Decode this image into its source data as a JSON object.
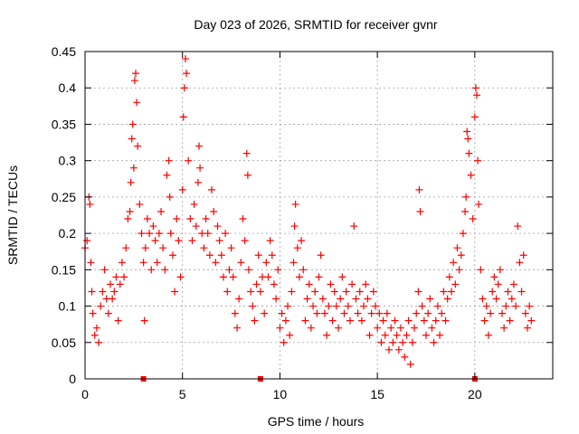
{
  "chart_data": {
    "type": "scatter",
    "title": "Day 023 of 2026, SRMTID for receiver gvnr",
    "xlabel": "GPS time / hours",
    "ylabel": "SRMTID / TECUs",
    "xlim": [
      0,
      24
    ],
    "ylim": [
      0,
      0.45
    ],
    "xticks": [
      0,
      5,
      10,
      15,
      20
    ],
    "xtick_labels": [
      "0",
      "5",
      "10",
      "15",
      "20"
    ],
    "yticks": [
      0,
      0.05,
      0.1,
      0.15,
      0.2,
      0.25,
      0.3,
      0.35,
      0.4,
      0.45
    ],
    "ytick_labels": [
      "0",
      "0.05",
      "0.1",
      "0.15",
      "0.2",
      "0.25",
      "0.3",
      "0.35",
      "0.4",
      "0.45"
    ],
    "grid": true,
    "marker": "+",
    "series": [
      {
        "name": "SRMTID",
        "color": "#ff0000",
        "points": [
          [
            0.0,
            0.18
          ],
          [
            0.1,
            0.19
          ],
          [
            0.2,
            0.25
          ],
          [
            0.25,
            0.24
          ],
          [
            0.3,
            0.16
          ],
          [
            0.35,
            0.12
          ],
          [
            0.4,
            0.09
          ],
          [
            0.5,
            0.06
          ],
          [
            0.6,
            0.07
          ],
          [
            0.7,
            0.05
          ],
          [
            0.8,
            0.1
          ],
          [
            0.9,
            0.12
          ],
          [
            1.0,
            0.15
          ],
          [
            1.1,
            0.11
          ],
          [
            1.2,
            0.09
          ],
          [
            1.3,
            0.13
          ],
          [
            1.4,
            0.11
          ],
          [
            1.5,
            0.12
          ],
          [
            1.6,
            0.14
          ],
          [
            1.7,
            0.08
          ],
          [
            1.8,
            0.13
          ],
          [
            1.9,
            0.16
          ],
          [
            2.0,
            0.14
          ],
          [
            2.1,
            0.18
          ],
          [
            2.2,
            0.22
          ],
          [
            2.3,
            0.23
          ],
          [
            2.35,
            0.27
          ],
          [
            2.4,
            0.33
          ],
          [
            2.45,
            0.35
          ],
          [
            2.5,
            0.29
          ],
          [
            2.55,
            0.41
          ],
          [
            2.6,
            0.42
          ],
          [
            2.65,
            0.38
          ],
          [
            2.7,
            0.32
          ],
          [
            2.8,
            0.24
          ],
          [
            2.9,
            0.2
          ],
          [
            3.0,
            0.16
          ],
          [
            3.05,
            0.08
          ],
          [
            3.1,
            0.18
          ],
          [
            3.2,
            0.22
          ],
          [
            3.3,
            0.2
          ],
          [
            3.4,
            0.15
          ],
          [
            3.5,
            0.21
          ],
          [
            3.6,
            0.19
          ],
          [
            3.7,
            0.16
          ],
          [
            3.8,
            0.2
          ],
          [
            3.9,
            0.23
          ],
          [
            4.0,
            0.18
          ],
          [
            4.1,
            0.15
          ],
          [
            4.2,
            0.28
          ],
          [
            4.3,
            0.3
          ],
          [
            4.35,
            0.25
          ],
          [
            4.4,
            0.2
          ],
          [
            4.5,
            0.17
          ],
          [
            4.6,
            0.12
          ],
          [
            4.7,
            0.22
          ],
          [
            4.8,
            0.19
          ],
          [
            4.9,
            0.14
          ],
          [
            5.0,
            0.26
          ],
          [
            5.05,
            0.36
          ],
          [
            5.1,
            0.4
          ],
          [
            5.15,
            0.44
          ],
          [
            5.2,
            0.42
          ],
          [
            5.3,
            0.3
          ],
          [
            5.4,
            0.22
          ],
          [
            5.5,
            0.19
          ],
          [
            5.6,
            0.24
          ],
          [
            5.7,
            0.21
          ],
          [
            5.8,
            0.27
          ],
          [
            5.85,
            0.32
          ],
          [
            5.9,
            0.29
          ],
          [
            6.0,
            0.2
          ],
          [
            6.1,
            0.18
          ],
          [
            6.2,
            0.22
          ],
          [
            6.3,
            0.2
          ],
          [
            6.4,
            0.17
          ],
          [
            6.5,
            0.26
          ],
          [
            6.6,
            0.23
          ],
          [
            6.7,
            0.16
          ],
          [
            6.8,
            0.21
          ],
          [
            6.9,
            0.19
          ],
          [
            7.0,
            0.17
          ],
          [
            7.1,
            0.14
          ],
          [
            7.2,
            0.2
          ],
          [
            7.3,
            0.12
          ],
          [
            7.4,
            0.15
          ],
          [
            7.5,
            0.18
          ],
          [
            7.6,
            0.14
          ],
          [
            7.7,
            0.09
          ],
          [
            7.8,
            0.07
          ],
          [
            7.9,
            0.11
          ],
          [
            8.0,
            0.16
          ],
          [
            8.1,
            0.22
          ],
          [
            8.2,
            0.19
          ],
          [
            8.3,
            0.31
          ],
          [
            8.35,
            0.28
          ],
          [
            8.4,
            0.15
          ],
          [
            8.5,
            0.12
          ],
          [
            8.6,
            0.1
          ],
          [
            8.7,
            0.08
          ],
          [
            8.8,
            0.13
          ],
          [
            8.9,
            0.17
          ],
          [
            9.0,
            0.12
          ],
          [
            9.1,
            0.14
          ],
          [
            9.2,
            0.09
          ],
          [
            9.3,
            0.16
          ],
          [
            9.4,
            0.14
          ],
          [
            9.5,
            0.19
          ],
          [
            9.6,
            0.17
          ],
          [
            9.7,
            0.13
          ],
          [
            9.8,
            0.11
          ],
          [
            9.9,
            0.15
          ],
          [
            10.0,
            0.07
          ],
          [
            10.1,
            0.09
          ],
          [
            10.2,
            0.05
          ],
          [
            10.3,
            0.08
          ],
          [
            10.4,
            0.1
          ],
          [
            10.5,
            0.06
          ],
          [
            10.6,
            0.12
          ],
          [
            10.7,
            0.16
          ],
          [
            10.75,
            0.21
          ],
          [
            10.8,
            0.24
          ],
          [
            10.9,
            0.18
          ],
          [
            11.0,
            0.14
          ],
          [
            11.1,
            0.19
          ],
          [
            11.2,
            0.15
          ],
          [
            11.3,
            0.08
          ],
          [
            11.4,
            0.11
          ],
          [
            11.5,
            0.13
          ],
          [
            11.6,
            0.07
          ],
          [
            11.7,
            0.1
          ],
          [
            11.8,
            0.12
          ],
          [
            11.9,
            0.09
          ],
          [
            12.0,
            0.14
          ],
          [
            12.1,
            0.17
          ],
          [
            12.2,
            0.11
          ],
          [
            12.3,
            0.09
          ],
          [
            12.4,
            0.06
          ],
          [
            12.5,
            0.1
          ],
          [
            12.6,
            0.13
          ],
          [
            12.7,
            0.08
          ],
          [
            12.8,
            0.12
          ],
          [
            12.9,
            0.1
          ],
          [
            13.0,
            0.07
          ],
          [
            13.1,
            0.11
          ],
          [
            13.2,
            0.14
          ],
          [
            13.3,
            0.09
          ],
          [
            13.4,
            0.12
          ],
          [
            13.5,
            0.1
          ],
          [
            13.6,
            0.08
          ],
          [
            13.7,
            0.13
          ],
          [
            13.8,
            0.21
          ],
          [
            13.9,
            0.11
          ],
          [
            14.0,
            0.09
          ],
          [
            14.1,
            0.12
          ],
          [
            14.2,
            0.08
          ],
          [
            14.3,
            0.1
          ],
          [
            14.4,
            0.13
          ],
          [
            14.5,
            0.11
          ],
          [
            14.6,
            0.06
          ],
          [
            14.7,
            0.09
          ],
          [
            14.8,
            0.12
          ],
          [
            14.9,
            0.1
          ],
          [
            15.0,
            0.07
          ],
          [
            15.1,
            0.09
          ],
          [
            15.2,
            0.05
          ],
          [
            15.3,
            0.08
          ],
          [
            15.4,
            0.06
          ],
          [
            15.5,
            0.09
          ],
          [
            15.6,
            0.04
          ],
          [
            15.7,
            0.07
          ],
          [
            15.8,
            0.05
          ],
          [
            15.9,
            0.08
          ],
          [
            16.0,
            0.06
          ],
          [
            16.1,
            0.04
          ],
          [
            16.2,
            0.07
          ],
          [
            16.3,
            0.05
          ],
          [
            16.4,
            0.03
          ],
          [
            16.5,
            0.06
          ],
          [
            16.6,
            0.08
          ],
          [
            16.7,
            0.02
          ],
          [
            16.8,
            0.05
          ],
          [
            16.9,
            0.07
          ],
          [
            17.0,
            0.09
          ],
          [
            17.1,
            0.12
          ],
          [
            17.15,
            0.26
          ],
          [
            17.2,
            0.23
          ],
          [
            17.3,
            0.1
          ],
          [
            17.4,
            0.08
          ],
          [
            17.5,
            0.06
          ],
          [
            17.6,
            0.09
          ],
          [
            17.7,
            0.11
          ],
          [
            17.8,
            0.07
          ],
          [
            17.9,
            0.05
          ],
          [
            18.0,
            0.08
          ],
          [
            18.1,
            0.1
          ],
          [
            18.2,
            0.06
          ],
          [
            18.3,
            0.09
          ],
          [
            18.4,
            0.12
          ],
          [
            18.5,
            0.08
          ],
          [
            18.6,
            0.11
          ],
          [
            18.7,
            0.14
          ],
          [
            18.8,
            0.12
          ],
          [
            18.9,
            0.16
          ],
          [
            19.0,
            0.13
          ],
          [
            19.1,
            0.18
          ],
          [
            19.2,
            0.15
          ],
          [
            19.3,
            0.17
          ],
          [
            19.4,
            0.2
          ],
          [
            19.5,
            0.23
          ],
          [
            19.55,
            0.25
          ],
          [
            19.6,
            0.34
          ],
          [
            19.65,
            0.33
          ],
          [
            19.7,
            0.31
          ],
          [
            19.8,
            0.28
          ],
          [
            19.9,
            0.22
          ],
          [
            20.0,
            0.36
          ],
          [
            20.05,
            0.4
          ],
          [
            20.1,
            0.39
          ],
          [
            20.15,
            0.3
          ],
          [
            20.2,
            0.24
          ],
          [
            20.3,
            0.15
          ],
          [
            20.4,
            0.11
          ],
          [
            20.5,
            0.08
          ],
          [
            20.6,
            0.1
          ],
          [
            20.7,
            0.06
          ],
          [
            20.8,
            0.09
          ],
          [
            20.9,
            0.12
          ],
          [
            21.0,
            0.14
          ],
          [
            21.1,
            0.11
          ],
          [
            21.2,
            0.13
          ],
          [
            21.3,
            0.15
          ],
          [
            21.4,
            0.09
          ],
          [
            21.5,
            0.07
          ],
          [
            21.6,
            0.1
          ],
          [
            21.7,
            0.12
          ],
          [
            21.8,
            0.08
          ],
          [
            21.9,
            0.11
          ],
          [
            22.0,
            0.13
          ],
          [
            22.1,
            0.1
          ],
          [
            22.2,
            0.21
          ],
          [
            22.3,
            0.16
          ],
          [
            22.4,
            0.12
          ],
          [
            22.5,
            0.17
          ],
          [
            22.6,
            0.09
          ],
          [
            22.7,
            0.07
          ],
          [
            22.8,
            0.1
          ],
          [
            22.9,
            0.08
          ]
        ]
      }
    ],
    "zero_markers": [
      3.0,
      9.0,
      20.0
    ]
  }
}
